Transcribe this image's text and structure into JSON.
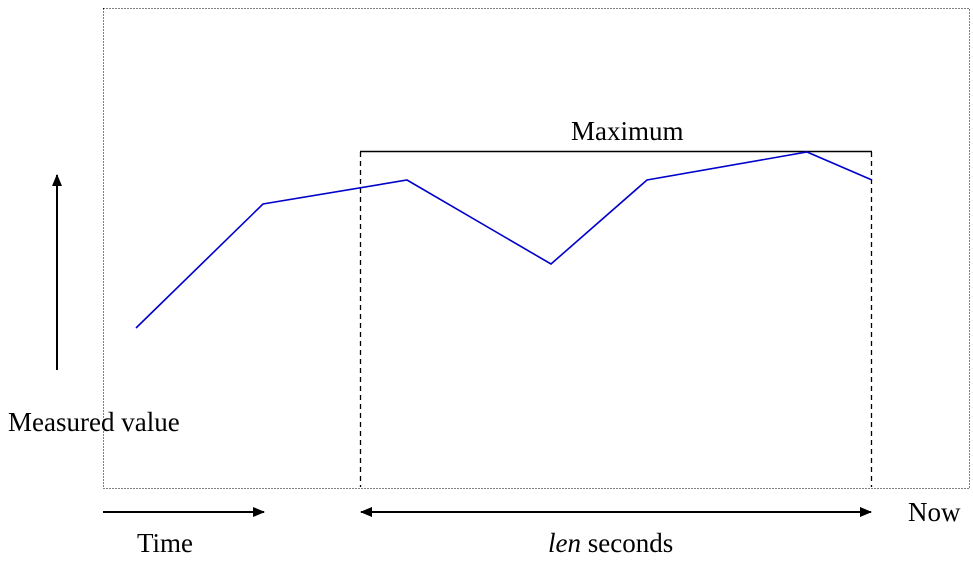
{
  "labels": {
    "measured_value": "Measured value",
    "maximum": "Maximum",
    "time": "Time",
    "len_var": "len",
    "len_suffix": " seconds",
    "now": "Now"
  },
  "colors": {
    "series_line": "#0000cc",
    "annotations": "#000000",
    "frame": "#000000"
  },
  "series": {
    "name": "",
    "values": [
      0.4,
      0.71,
      0.77,
      0.56,
      0.77,
      0.84,
      0.77
    ]
  }
}
